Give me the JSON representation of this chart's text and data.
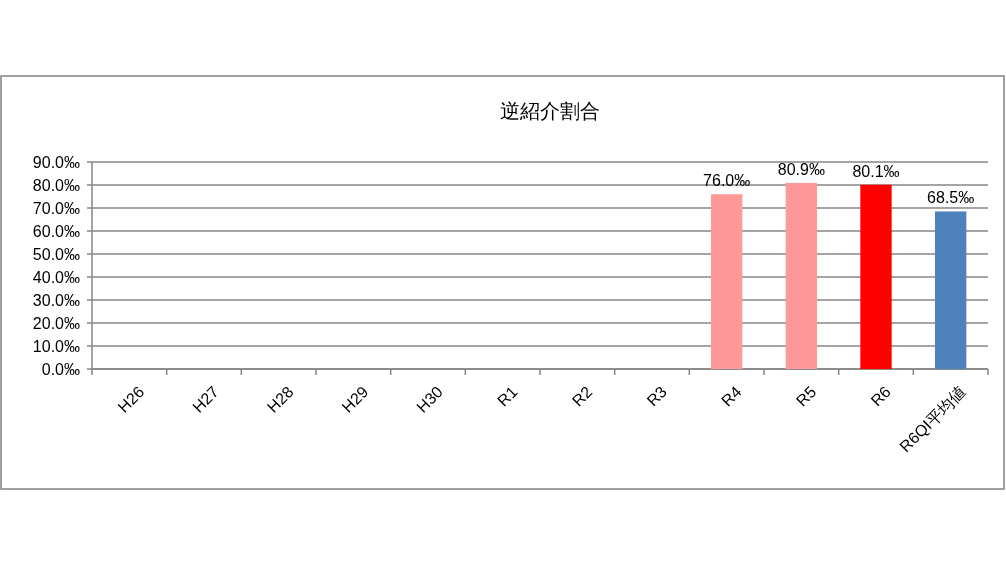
{
  "chart_data": {
    "type": "bar",
    "title": "逆紹介割合",
    "categories": [
      "H26",
      "H27",
      "H28",
      "H29",
      "H30",
      "R1",
      "R2",
      "R3",
      "R4",
      "R5",
      "R6",
      "R6QI平均値"
    ],
    "values": [
      null,
      null,
      null,
      null,
      null,
      null,
      null,
      null,
      76.0,
      80.9,
      80.1,
      68.5
    ],
    "colors": [
      null,
      null,
      null,
      null,
      null,
      null,
      null,
      null,
      "#ff9999",
      "#ff9999",
      "#ff0000",
      "#4f81bd"
    ],
    "value_labels": [
      null,
      null,
      null,
      null,
      null,
      null,
      null,
      null,
      "76.0‰",
      "80.9‰",
      "80.1‰",
      "68.5‰"
    ],
    "ylim": [
      0,
      90
    ],
    "yticks": [
      {
        "value": 0,
        "label": "0.0‰"
      },
      {
        "value": 10,
        "label": "10.0‰"
      },
      {
        "value": 20,
        "label": "20.0‰"
      },
      {
        "value": 30,
        "label": "30.0‰"
      },
      {
        "value": 40,
        "label": "40.0‰"
      },
      {
        "value": 50,
        "label": "50.0‰"
      },
      {
        "value": 60,
        "label": "60.0‰"
      },
      {
        "value": 70,
        "label": "70.0‰"
      },
      {
        "value": 80,
        "label": "80.0‰"
      },
      {
        "value": 90,
        "label": "90.0‰"
      }
    ],
    "grid": "y"
  }
}
